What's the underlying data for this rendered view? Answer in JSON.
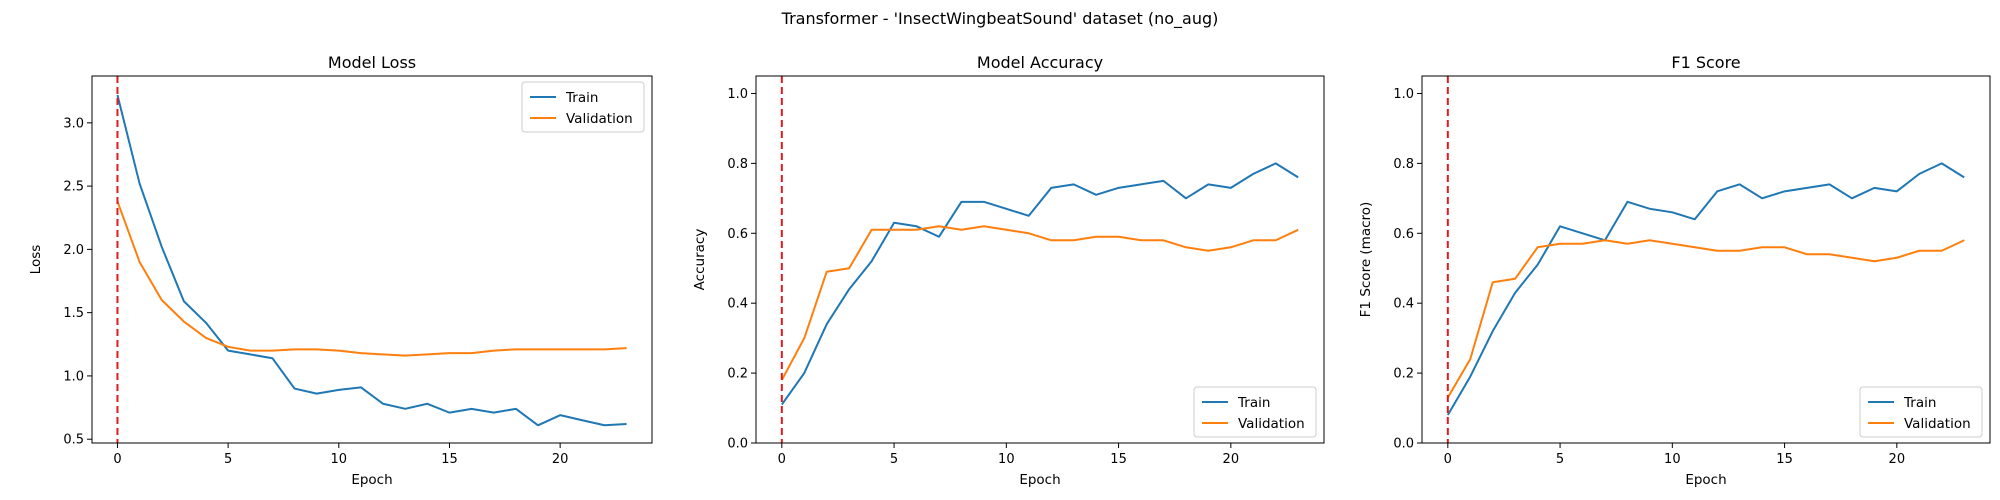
{
  "figure": {
    "suptitle": "Transformer - 'InsectWingbeatSound' dataset (no_aug)"
  },
  "colors": {
    "train": "#1f77b4",
    "validation": "#ff7f0e",
    "marker_line": "#e31a1c",
    "axes": "#000000",
    "legend_border": "#cccccc"
  },
  "chart_data": [
    {
      "type": "line",
      "title": "Model Loss",
      "xlabel": "Epoch",
      "ylabel": "Loss",
      "xlim": [
        -1.15,
        24.15
      ],
      "ylim": [
        0.47,
        3.37
      ],
      "xticks": [
        0,
        5,
        10,
        15,
        20
      ],
      "yticks": [
        0.5,
        1.0,
        1.5,
        2.0,
        2.5,
        3.0
      ],
      "ytick_labels": [
        "0.5",
        "1.0",
        "1.5",
        "2.0",
        "2.5",
        "3.0"
      ],
      "legend_location": "upper right",
      "vline_x": 0,
      "x": [
        0,
        1,
        2,
        3,
        4,
        5,
        6,
        7,
        8,
        9,
        10,
        11,
        12,
        13,
        14,
        15,
        16,
        17,
        18,
        19,
        20,
        21,
        22,
        23
      ],
      "series": [
        {
          "name": "Train",
          "values": [
            3.22,
            2.52,
            2.02,
            1.59,
            1.42,
            1.2,
            1.17,
            1.14,
            0.9,
            0.86,
            0.89,
            0.91,
            0.78,
            0.74,
            0.78,
            0.71,
            0.74,
            0.71,
            0.74,
            0.61,
            0.69,
            0.65,
            0.61,
            0.62
          ]
        },
        {
          "name": "Validation",
          "values": [
            2.38,
            1.9,
            1.6,
            1.43,
            1.3,
            1.23,
            1.2,
            1.2,
            1.21,
            1.21,
            1.2,
            1.18,
            1.17,
            1.16,
            1.17,
            1.18,
            1.18,
            1.2,
            1.21,
            1.21,
            1.21,
            1.21,
            1.21,
            1.22
          ]
        }
      ]
    },
    {
      "type": "line",
      "title": "Model Accuracy",
      "xlabel": "Epoch",
      "ylabel": "Accuracy",
      "xlim": [
        -1.15,
        24.15
      ],
      "ylim": [
        0.0,
        1.05
      ],
      "xticks": [
        0,
        5,
        10,
        15,
        20
      ],
      "yticks": [
        0.0,
        0.2,
        0.4,
        0.6,
        0.8,
        1.0
      ],
      "ytick_labels": [
        "0.0",
        "0.2",
        "0.4",
        "0.6",
        "0.8",
        "1.0"
      ],
      "legend_location": "lower right",
      "vline_x": 0,
      "x": [
        0,
        1,
        2,
        3,
        4,
        5,
        6,
        7,
        8,
        9,
        10,
        11,
        12,
        13,
        14,
        15,
        16,
        17,
        18,
        19,
        20,
        21,
        22,
        23
      ],
      "series": [
        {
          "name": "Train",
          "values": [
            0.11,
            0.2,
            0.34,
            0.44,
            0.52,
            0.63,
            0.62,
            0.59,
            0.69,
            0.69,
            0.67,
            0.65,
            0.73,
            0.74,
            0.71,
            0.73,
            0.74,
            0.75,
            0.7,
            0.74,
            0.73,
            0.77,
            0.8,
            0.76
          ]
        },
        {
          "name": "Validation",
          "values": [
            0.18,
            0.3,
            0.49,
            0.5,
            0.61,
            0.61,
            0.61,
            0.62,
            0.61,
            0.62,
            0.61,
            0.6,
            0.58,
            0.58,
            0.59,
            0.59,
            0.58,
            0.58,
            0.56,
            0.55,
            0.56,
            0.58,
            0.58,
            0.61
          ]
        }
      ]
    },
    {
      "type": "line",
      "title": "F1 Score",
      "xlabel": "Epoch",
      "ylabel": "F1 Score (macro)",
      "xlim": [
        -1.15,
        24.15
      ],
      "ylim": [
        0.0,
        1.05
      ],
      "xticks": [
        0,
        5,
        10,
        15,
        20
      ],
      "yticks": [
        0.0,
        0.2,
        0.4,
        0.6,
        0.8,
        1.0
      ],
      "ytick_labels": [
        "0.0",
        "0.2",
        "0.4",
        "0.6",
        "0.8",
        "1.0"
      ],
      "legend_location": "lower right",
      "vline_x": 0,
      "x": [
        0,
        1,
        2,
        3,
        4,
        5,
        6,
        7,
        8,
        9,
        10,
        11,
        12,
        13,
        14,
        15,
        16,
        17,
        18,
        19,
        20,
        21,
        22,
        23
      ],
      "series": [
        {
          "name": "Train",
          "values": [
            0.08,
            0.19,
            0.32,
            0.43,
            0.51,
            0.62,
            0.6,
            0.58,
            0.69,
            0.67,
            0.66,
            0.64,
            0.72,
            0.74,
            0.7,
            0.72,
            0.73,
            0.74,
            0.7,
            0.73,
            0.72,
            0.77,
            0.8,
            0.76
          ]
        },
        {
          "name": "Validation",
          "values": [
            0.13,
            0.24,
            0.46,
            0.47,
            0.56,
            0.57,
            0.57,
            0.58,
            0.57,
            0.58,
            0.57,
            0.56,
            0.55,
            0.55,
            0.56,
            0.56,
            0.54,
            0.54,
            0.53,
            0.52,
            0.53,
            0.55,
            0.55,
            0.58
          ]
        }
      ]
    }
  ]
}
